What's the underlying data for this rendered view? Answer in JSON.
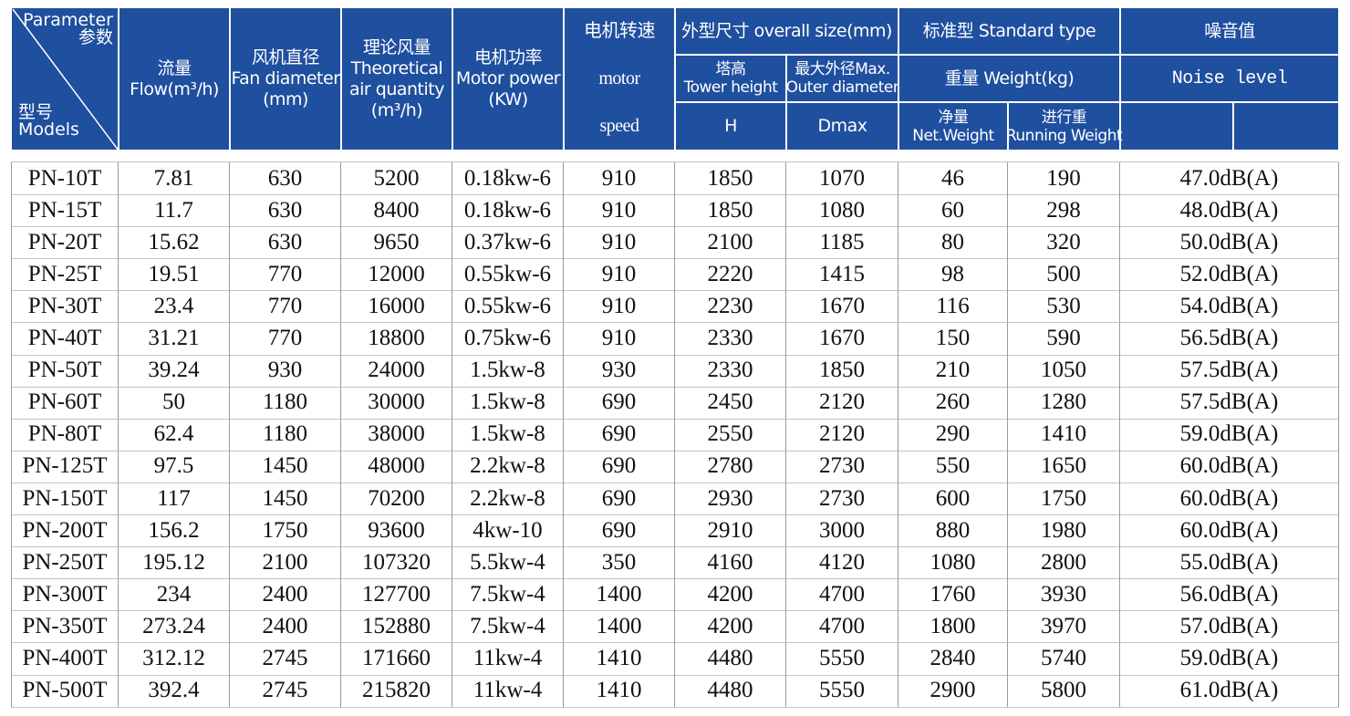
{
  "header": {
    "cells": [
      {
        "lines": [
          "Parameter",
          "参数"
        ]
      },
      {
        "lines": [
          "型号",
          "Models"
        ]
      },
      {
        "lines": [
          "流量",
          "Flow(m³/h)"
        ]
      },
      {
        "lines": [
          "风机直径",
          "Fan diameter",
          "(mm)"
        ]
      },
      {
        "lines": [
          "理论风量",
          "Theoretical",
          "air quantity",
          "(m³/h)"
        ]
      },
      {
        "lines": [
          "电机功率",
          "Motor power",
          "(KW)"
        ]
      },
      {
        "lines": [
          "电机转速",
          "motor",
          "speed"
        ]
      },
      {
        "lines": [
          "外型尺寸 overall size(mm)"
        ]
      },
      {
        "lines": [
          "标准型 Standard type"
        ]
      },
      {
        "lines": [
          "噪音值"
        ]
      },
      {
        "lines": [
          "塔高",
          "Tower height"
        ]
      },
      {
        "lines": [
          "最大外径Max.",
          "Outer diameter"
        ]
      },
      {
        "lines": [
          "重量 Weight(kg)"
        ]
      },
      {
        "lines": [
          "Noise level"
        ]
      },
      {
        "lines": [
          "H"
        ]
      },
      {
        "lines": [
          "Dmax"
        ]
      },
      {
        "lines": [
          "净量",
          "Net.Weight"
        ]
      },
      {
        "lines": [
          "进行重",
          "Running Weight"
        ]
      }
    ]
  },
  "table": {
    "rows": [
      [
        "PN-10T",
        "7.81",
        "630",
        "5200",
        "0.18kw-6",
        "910",
        "1850",
        "1070",
        "46",
        "190",
        "47.0dB(A)"
      ],
      [
        "PN-15T",
        "11.7",
        "630",
        "8400",
        "0.18kw-6",
        "910",
        "1850",
        "1080",
        "60",
        "298",
        "48.0dB(A)"
      ],
      [
        "PN-20T",
        "15.62",
        "630",
        "9650",
        "0.37kw-6",
        "910",
        "2100",
        "1185",
        "80",
        "320",
        "50.0dB(A)"
      ],
      [
        "PN-25T",
        "19.51",
        "770",
        "12000",
        "0.55kw-6",
        "910",
        "2220",
        "1415",
        "98",
        "500",
        "52.0dB(A)"
      ],
      [
        "PN-30T",
        "23.4",
        "770",
        "16000",
        "0.55kw-6",
        "910",
        "2230",
        "1670",
        "116",
        "530",
        "54.0dB(A)"
      ],
      [
        "PN-40T",
        "31.21",
        "770",
        "18800",
        "0.75kw-6",
        "910",
        "2330",
        "1670",
        "150",
        "590",
        "56.5dB(A)"
      ],
      [
        "PN-50T",
        "39.24",
        "930",
        "24000",
        "1.5kw-8",
        "930",
        "2330",
        "1850",
        "210",
        "1050",
        "57.5dB(A)"
      ],
      [
        "PN-60T",
        "50",
        "1180",
        "30000",
        "1.5kw-8",
        "690",
        "2450",
        "2120",
        "260",
        "1280",
        "57.5dB(A)"
      ],
      [
        "PN-80T",
        "62.4",
        "1180",
        "38000",
        "1.5kw-8",
        "690",
        "2550",
        "2120",
        "290",
        "1410",
        "59.0dB(A)"
      ],
      [
        "PN-125T",
        "97.5",
        "1450",
        "48000",
        "2.2kw-8",
        "690",
        "2780",
        "2730",
        "550",
        "1650",
        "60.0dB(A)"
      ],
      [
        "PN-150T",
        "117",
        "1450",
        "70200",
        "2.2kw-8",
        "690",
        "2930",
        "2730",
        "600",
        "1750",
        "60.0dB(A)"
      ],
      [
        "PN-200T",
        "156.2",
        "1750",
        "93600",
        "4kw-10",
        "690",
        "2910",
        "3000",
        "880",
        "1980",
        "60.0dB(A)"
      ],
      [
        "PN-250T",
        "195.12",
        "2100",
        "107320",
        "5.5kw-4",
        "350",
        "4160",
        "4120",
        "1080",
        "2800",
        "55.0dB(A)"
      ],
      [
        "PN-300T",
        "234",
        "2400",
        "127700",
        "7.5kw-4",
        "1400",
        "4200",
        "4700",
        "1760",
        "3930",
        "56.0dB(A)"
      ],
      [
        "PN-350T",
        "273.24",
        "2400",
        "152880",
        "7.5kw-4",
        "1400",
        "4200",
        "4700",
        "1800",
        "3970",
        "57.0dB(A)"
      ],
      [
        "PN-400T",
        "312.12",
        "2745",
        "171660",
        "11kw-4",
        "1410",
        "4480",
        "5550",
        "2840",
        "5740",
        "59.0dB(A)"
      ],
      [
        "PN-500T",
        "392.4",
        "2745",
        "215820",
        "11kw-4",
        "1410",
        "4480",
        "5550",
        "2900",
        "5800",
        "61.0dB(A)"
      ]
    ]
  }
}
